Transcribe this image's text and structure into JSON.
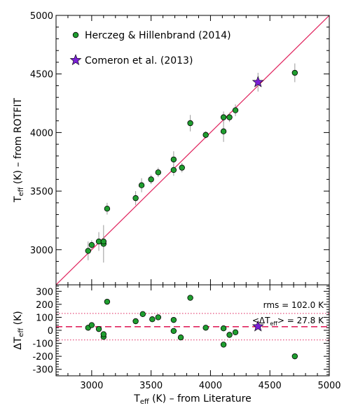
{
  "chart_data": [
    {
      "type": "scatter",
      "xlim": [
        2700,
        5000
      ],
      "ylim": [
        2700,
        5000
      ],
      "xticks": [
        "3000",
        "3500",
        "4000",
        "4500",
        "5000"
      ],
      "yticks": [
        "3000",
        "3500",
        "4000",
        "4500",
        "5000"
      ],
      "ylabel": {
        "main": "T",
        "sub": "eff",
        "rest": " (K) – from ROTFIT"
      },
      "legend": {
        "placement": "top-left"
      },
      "one_to_one_line": {
        "x": [
          2700,
          5000
        ],
        "y": [
          2700,
          5000
        ],
        "color": "#e0245e"
      },
      "series": [
        {
          "name": "Herczeg & Hillenbrand (2014)",
          "marker": "circle",
          "color": "#1f9e2f",
          "points": [
            {
              "x": 2970,
              "y": 2990,
              "err": 80
            },
            {
              "x": 3000,
              "y": 3040,
              "err": 40
            },
            {
              "x": 3060,
              "y": 3070,
              "err": 80
            },
            {
              "x": 3100,
              "y": 3050,
              "err": 160
            },
            {
              "x": 3100,
              "y": 3070,
              "err": 40
            },
            {
              "x": 3130,
              "y": 3350,
              "err": 50
            },
            {
              "x": 3370,
              "y": 3440,
              "err": 60
            },
            {
              "x": 3420,
              "y": 3550,
              "err": 60
            },
            {
              "x": 3500,
              "y": 3600,
              "err": 40
            },
            {
              "x": 3560,
              "y": 3660,
              "err": 40
            },
            {
              "x": 3690,
              "y": 3770,
              "err": 70
            },
            {
              "x": 3690,
              "y": 3680,
              "err": 50
            },
            {
              "x": 3760,
              "y": 3700,
              "err": 40
            },
            {
              "x": 3830,
              "y": 4080,
              "err": 70
            },
            {
              "x": 3960,
              "y": 3980,
              "err": 30
            },
            {
              "x": 4110,
              "y": 4130,
              "err": 50
            },
            {
              "x": 4110,
              "y": 4010,
              "err": 90
            },
            {
              "x": 4160,
              "y": 4130,
              "err": 40
            },
            {
              "x": 4210,
              "y": 4190,
              "err": 50
            },
            {
              "x": 4710,
              "y": 4510,
              "err": 80
            }
          ]
        },
        {
          "name": "Comeron et al. (2013)",
          "marker": "star",
          "color": "#7a1fd6",
          "points": [
            {
              "x": 4400,
              "y": 4430,
              "err": 80
            }
          ]
        }
      ]
    },
    {
      "type": "scatter",
      "xlim": [
        2700,
        5000
      ],
      "ylim": [
        -350,
        350
      ],
      "xticks": [
        "3000",
        "3500",
        "4000",
        "4500",
        "5000"
      ],
      "yticks": [
        "-300",
        "-200",
        "-100",
        "0",
        "100",
        "200",
        "300"
      ],
      "xlabel": {
        "main": "T",
        "sub": "eff",
        "rest": " (K) – from Literature"
      },
      "ylabel": {
        "main": "ΔT",
        "sub": "eff",
        "rest": " (K)"
      },
      "mean_line": {
        "value": 27.8,
        "color": "#e0245e",
        "style": "dashed"
      },
      "rms_band": {
        "lower": -74.2,
        "upper": 129.8,
        "color": "#e0245e",
        "style": "dotted"
      },
      "annotations": {
        "rms": "rms = 102.0 K",
        "mean_prefix": "<ΔT",
        "mean_sub": "eff",
        "mean_suffix": "> = 27.8 K"
      },
      "series": [
        {
          "name": "Herczeg & Hillenbrand (2014)",
          "marker": "circle",
          "color": "#1f9e2f",
          "points": [
            {
              "x": 2970,
              "y": 20
            },
            {
              "x": 3000,
              "y": 40
            },
            {
              "x": 3060,
              "y": 10
            },
            {
              "x": 3100,
              "y": -50
            },
            {
              "x": 3100,
              "y": -30
            },
            {
              "x": 3130,
              "y": 220
            },
            {
              "x": 3370,
              "y": 70
            },
            {
              "x": 3430,
              "y": 125
            },
            {
              "x": 3510,
              "y": 85
            },
            {
              "x": 3560,
              "y": 100
            },
            {
              "x": 3690,
              "y": 80
            },
            {
              "x": 3690,
              "y": -5
            },
            {
              "x": 3750,
              "y": -55
            },
            {
              "x": 3830,
              "y": 250
            },
            {
              "x": 3960,
              "y": 20
            },
            {
              "x": 4110,
              "y": 15
            },
            {
              "x": 4110,
              "y": -110
            },
            {
              "x": 4160,
              "y": -35
            },
            {
              "x": 4210,
              "y": -15
            },
            {
              "x": 4710,
              "y": -200
            }
          ]
        },
        {
          "name": "Comeron et al. (2013)",
          "marker": "star",
          "color": "#7a1fd6",
          "points": [
            {
              "x": 4400,
              "y": 30
            }
          ]
        }
      ]
    }
  ]
}
